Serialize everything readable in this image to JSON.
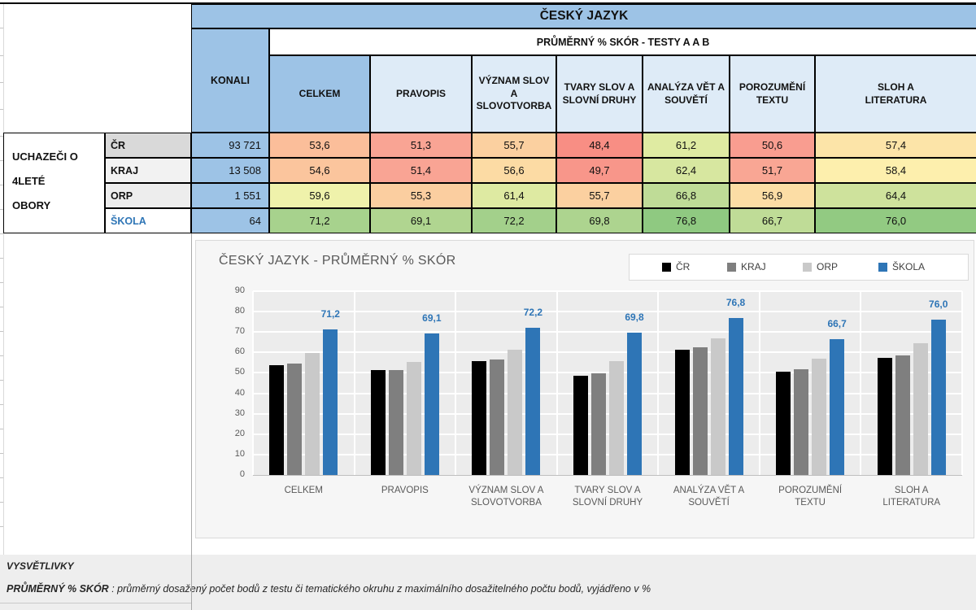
{
  "table": {
    "title": "ČESKÝ JAZYK",
    "subtitle": "PRŮMĚRNÝ % SKÓR - TESTY A A B",
    "konali_label": "KONALI",
    "group_label": "UCHAZEČI O\n4LETÉ\nOBORY",
    "columns": [
      "CELKEM",
      "PRAVOPIS",
      "VÝZNAM SLOV A SLOVOTVORBA",
      "TVARY SLOV A SLOVNÍ DRUHY",
      "ANALÝZA VĚT A SOUVĚTÍ",
      "POROZUMĚNÍ TEXTU",
      "SLOH A LITERATURA"
    ],
    "rows": [
      {
        "label": "ČR",
        "label_color": "#111111",
        "header_bg": "#d9d9d9",
        "konali": "93 721",
        "scores": [
          "53,6",
          "51,3",
          "55,7",
          "48,4",
          "61,2",
          "50,6",
          "57,4"
        ],
        "colors": [
          "#fbbe9a",
          "#f9a494",
          "#fbd0a0",
          "#f88e84",
          "#dfeba2",
          "#f99d90",
          "#fce4a8"
        ]
      },
      {
        "label": "KRAJ",
        "label_color": "#111111",
        "header_bg": "#f2f2f2",
        "konali": "13 508",
        "scores": [
          "54,6",
          "51,4",
          "56,6",
          "49,7",
          "62,4",
          "51,7",
          "58,4"
        ],
        "colors": [
          "#fbc59d",
          "#f9a494",
          "#fcdba4",
          "#f8968a",
          "#d7e7a0",
          "#f9a694",
          "#fdefad"
        ]
      },
      {
        "label": "ORP",
        "label_color": "#111111",
        "header_bg": "#ededed",
        "konali": "1 551",
        "scores": [
          "59,6",
          "55,3",
          "61,4",
          "55,7",
          "66,8",
          "56,9",
          "64,4"
        ],
        "colors": [
          "#eff2ab",
          "#fbcea0",
          "#deeaa2",
          "#fbd0a0",
          "#bfdc97",
          "#fcdda5",
          "#cee29c"
        ]
      },
      {
        "label": "ŠKOLA",
        "label_color": "#2e75b6",
        "header_bg": "#ffffff",
        "konali": "64",
        "scores": [
          "71,2",
          "69,1",
          "72,2",
          "69,8",
          "76,8",
          "66,7",
          "76,0"
        ],
        "colors": [
          "#a7d28d",
          "#b0d590",
          "#a3d08b",
          "#add48f",
          "#8fc981",
          "#bfdc97",
          "#92ca82"
        ]
      }
    ]
  },
  "chart_data": {
    "type": "bar",
    "title": "ČESKÝ JAZYK - PRŮMĚRNÝ % SKÓR",
    "categories": [
      "CELKEM",
      "PRAVOPIS",
      "VÝZNAM SLOV A SLOVOTVORBA",
      "TVARY SLOV A SLOVNÍ DRUHY",
      "ANALÝZA VĚT A SOUVĚTÍ",
      "POROZUMĚNÍ TEXTU",
      "SLOH A LITERATURA"
    ],
    "series": [
      {
        "name": "ČR",
        "color": "#000000",
        "values": [
          53.6,
          51.3,
          55.7,
          48.4,
          61.2,
          50.6,
          57.4
        ]
      },
      {
        "name": "KRAJ",
        "color": "#7f7f7f",
        "values": [
          54.6,
          51.4,
          56.6,
          49.7,
          62.4,
          51.7,
          58.4
        ]
      },
      {
        "name": "ORP",
        "color": "#c9c9c9",
        "values": [
          59.6,
          55.3,
          61.4,
          55.7,
          66.8,
          56.9,
          64.4
        ]
      },
      {
        "name": "ŠKOLA",
        "color": "#2e75b6",
        "values": [
          71.2,
          69.1,
          72.2,
          69.8,
          76.8,
          66.7,
          76.0
        ]
      }
    ],
    "data_labels": {
      "series": "ŠKOLA",
      "color": "#2e75b6",
      "values": [
        "71,2",
        "69,1",
        "72,2",
        "69,8",
        "76,8",
        "66,7",
        "76,0"
      ]
    },
    "ylim": [
      0,
      90
    ],
    "ytick_step": 10,
    "grid": true,
    "legend_position": "top-right"
  },
  "footer": {
    "heading": "VYSVĚTLIVKY",
    "term": "PRŮMĚRNÝ % SKÓR",
    "definition": " : průměrný dosažený počet bodů z testu či tematického okruhu z maximálního dosažitelného počtu bodů, vyjádřeno v %"
  },
  "colors": {
    "header_dark_blue": "#9dc3e6",
    "header_light_blue": "#deebf7",
    "konali_cell_blue": "#9dc3e6",
    "school_accent_blue": "#2e75b6",
    "plot_area_gray": "#ececec",
    "footer_band_gray": "#eeeeee"
  }
}
